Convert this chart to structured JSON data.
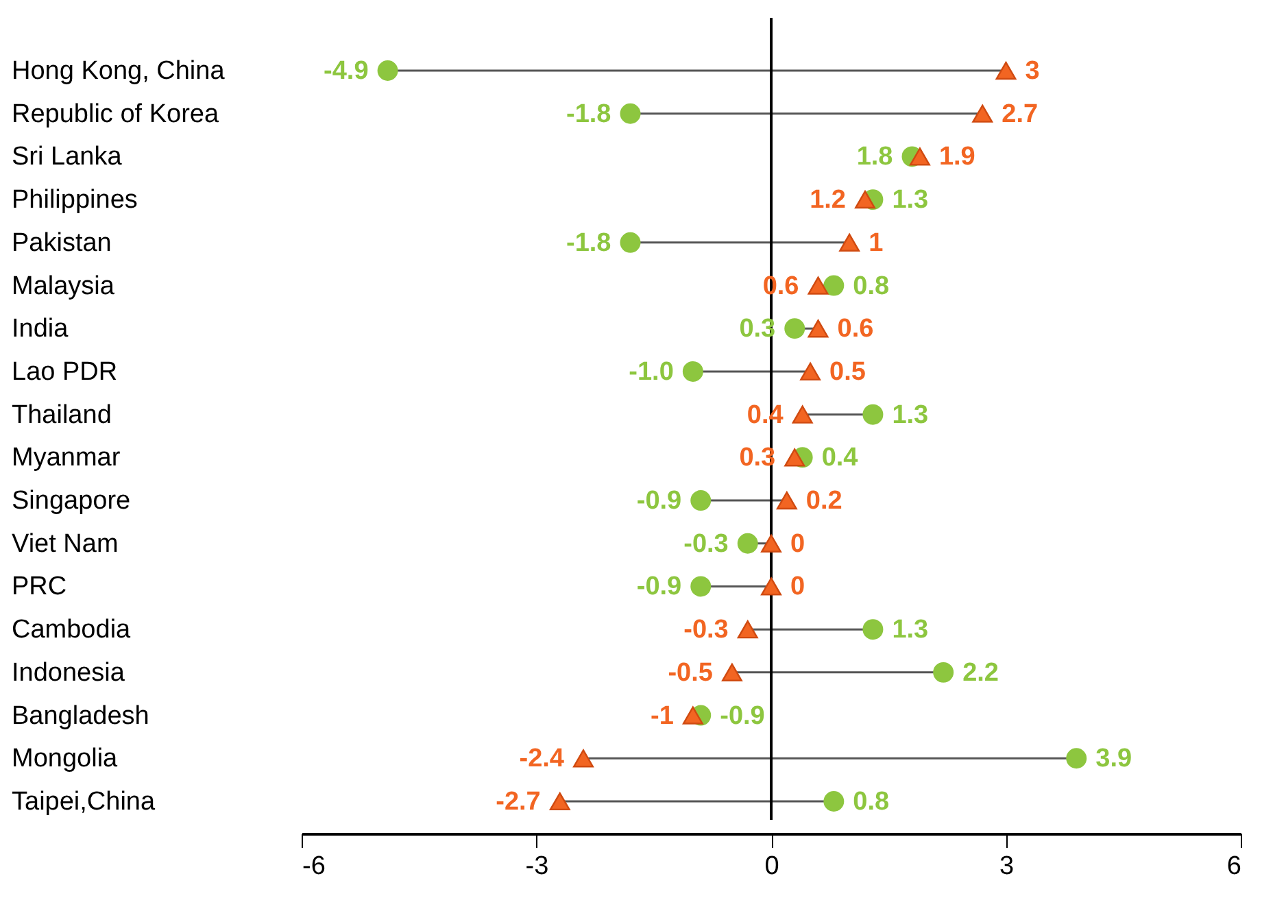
{
  "chart_data": {
    "type": "scatter",
    "categories": [
      "Hong Kong, China",
      "Republic of Korea",
      "Sri Lanka",
      "Philippines",
      "Pakistan",
      "Malaysia",
      "India",
      "Lao PDR",
      "Thailand",
      "Myanmar",
      "Singapore",
      "Viet Nam",
      "PRC",
      "Cambodia",
      "Indonesia",
      "Bangladesh",
      "Mongolia",
      "Taipei,China"
    ],
    "series": [
      {
        "color": "#8dc63f",
        "marker": "circle",
        "values": [
          -4.9,
          -1.8,
          1.8,
          1.3,
          -1.8,
          0.8,
          0.3,
          -1.0,
          1.3,
          0.4,
          -0.9,
          -0.3,
          -0.9,
          1.3,
          2.2,
          -0.9,
          3.9,
          0.8
        ],
        "value_labels": [
          "-4.9",
          "-1.8",
          "1.8",
          "1.3",
          "-1.8",
          "0.8",
          "0.3",
          "-1.0",
          "1.3",
          "0.4",
          "-0.9",
          "-0.3",
          "-0.9",
          "1.3",
          "2.2",
          "-0.9",
          "3.9",
          "0.8"
        ]
      },
      {
        "color": "#f26522",
        "marker": "triangle",
        "values": [
          3,
          2.7,
          1.9,
          1.2,
          1,
          0.6,
          0.6,
          0.5,
          0.4,
          0.3,
          0.2,
          0,
          0,
          -0.3,
          -0.5,
          -1,
          -2.4,
          -2.7
        ],
        "value_labels": [
          "3",
          "2.7",
          "1.9",
          "1.2",
          "1",
          "0.6",
          "0.6",
          "0.5",
          "0.4",
          "0.3",
          "0.2",
          "0",
          "0",
          "-0.3",
          "-0.5",
          "-1",
          "-2.4",
          "-2.7"
        ]
      }
    ],
    "orientation": "horizontal",
    "xlim": [
      -6,
      6
    ],
    "xticks": [
      -6,
      -3,
      0,
      3,
      6
    ],
    "ref_lines": [
      {
        "axis": "x",
        "value": 0,
        "color": "#000000"
      }
    ],
    "grid": false,
    "legend": false
  }
}
